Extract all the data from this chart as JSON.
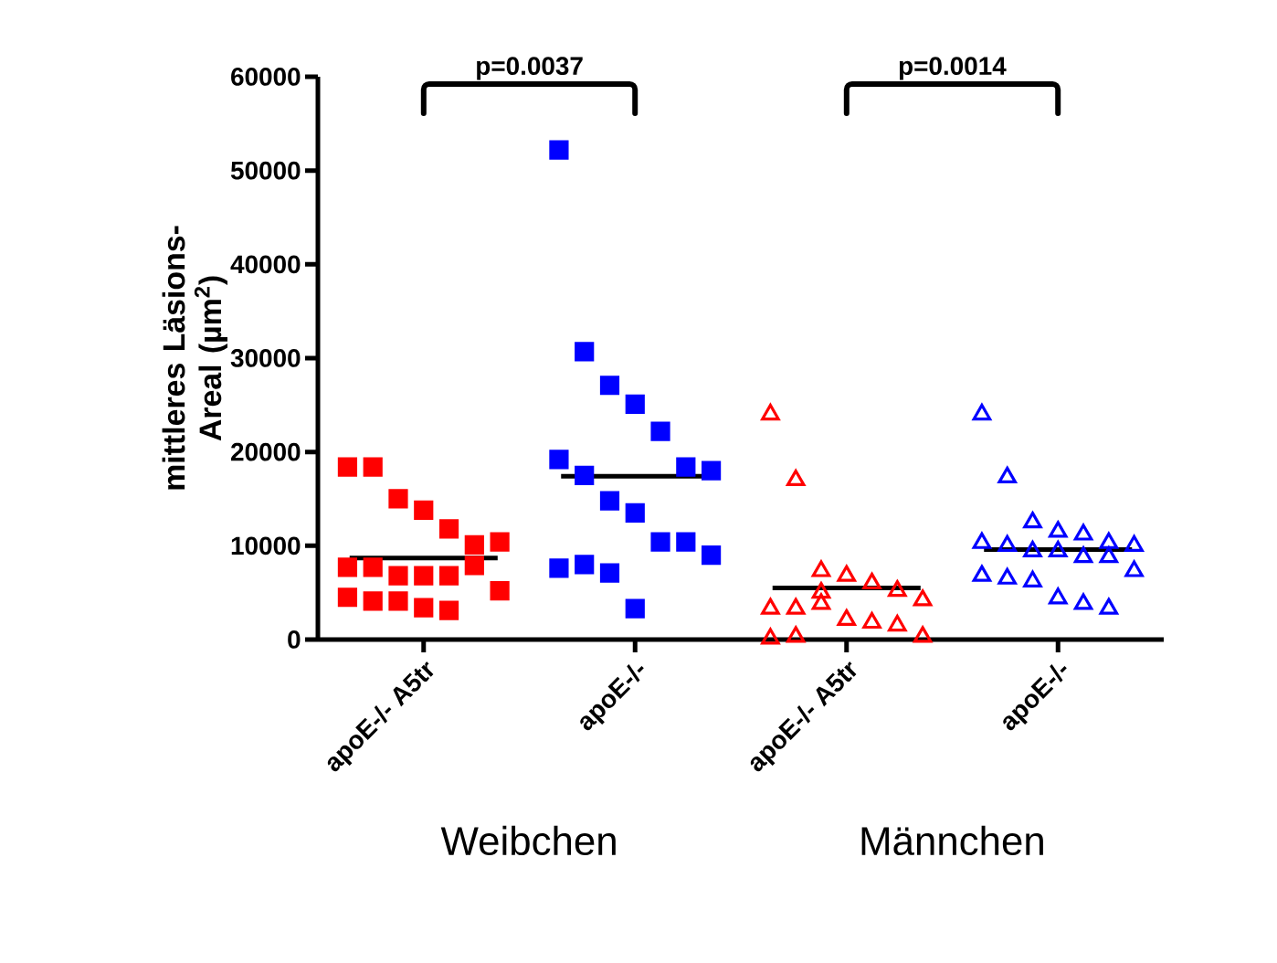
{
  "chart_data": {
    "type": "scatter",
    "ylabel": "mittleres Läsions-Areal (µm$^{2}$)",
    "categories": [
      "apoE-/- A5tr",
      "apoE-/-",
      "apoE-/- A5tr",
      "apoE-/-"
    ],
    "series": [
      {
        "marker": "square",
        "colors": [
          "#ff0000",
          "#0000ff",
          "#ff0000",
          "#0000ff"
        ],
        "values": [
          18400,
          52200,
          null,
          null
        ]
      },
      {
        "marker": "square",
        "colors": [
          "#ff0000",
          "#0000ff",
          "#ff0000",
          "#0000ff"
        ],
        "values": [
          18400,
          30700,
          null,
          null
        ]
      },
      {
        "marker": "square",
        "colors": [
          "#ff0000",
          "#0000ff",
          "#ff0000",
          "#0000ff"
        ],
        "values": [
          15000,
          27100,
          null,
          null
        ]
      },
      {
        "marker": "square",
        "colors": [
          "#ff0000",
          "#0000ff",
          "#ff0000",
          "#0000ff"
        ],
        "values": [
          13800,
          25100,
          null,
          null
        ]
      },
      {
        "marker": "square",
        "colors": [
          "#ff0000",
          "#0000ff",
          "#ff0000",
          "#0000ff"
        ],
        "values": [
          11800,
          22200,
          null,
          null
        ]
      },
      {
        "marker": "square",
        "colors": [
          "#ff0000",
          "#0000ff",
          "#ff0000",
          "#0000ff"
        ],
        "values": [
          10100,
          18400,
          null,
          null
        ]
      },
      {
        "marker": "square",
        "colors": [
          "#ff0000",
          "#0000ff",
          "#ff0000",
          "#0000ff"
        ],
        "values": [
          10400,
          18000,
          null,
          null
        ]
      },
      {
        "marker": "square",
        "colors": [
          "#ff0000",
          "#0000ff",
          "#ff0000",
          "#0000ff"
        ],
        "values": [
          7700,
          19200,
          null,
          null
        ]
      },
      {
        "marker": "square",
        "colors": [
          "#ff0000",
          "#0000ff",
          "#ff0000",
          "#0000ff"
        ],
        "values": [
          7700,
          17500,
          null,
          null
        ]
      },
      {
        "marker": "square",
        "colors": [
          "#ff0000",
          "#0000ff",
          "#ff0000",
          "#0000ff"
        ],
        "values": [
          6800,
          14800,
          null,
          null
        ]
      },
      {
        "marker": "square",
        "colors": [
          "#ff0000",
          "#0000ff",
          "#ff0000",
          "#0000ff"
        ],
        "values": [
          6800,
          13500,
          null,
          null
        ]
      },
      {
        "marker": "square",
        "colors": [
          "#ff0000",
          "#0000ff",
          "#ff0000",
          "#0000ff"
        ],
        "values": [
          6800,
          10400,
          null,
          null
        ]
      },
      {
        "marker": "square",
        "colors": [
          "#ff0000",
          "#0000ff",
          "#ff0000",
          "#0000ff"
        ],
        "values": [
          7900,
          10400,
          null,
          null
        ]
      },
      {
        "marker": "square",
        "colors": [
          "#ff0000",
          "#0000ff",
          "#ff0000",
          "#0000ff"
        ],
        "values": [
          5200,
          9000,
          null,
          null
        ]
      },
      {
        "marker": "square",
        "colors": [
          "#ff0000",
          "#0000ff",
          "#ff0000",
          "#0000ff"
        ],
        "values": [
          4500,
          7600,
          null,
          null
        ]
      },
      {
        "marker": "square",
        "colors": [
          "#ff0000",
          "#0000ff",
          "#ff0000",
          "#0000ff"
        ],
        "values": [
          4100,
          8000,
          null,
          null
        ]
      },
      {
        "marker": "square",
        "colors": [
          "#ff0000",
          "#0000ff",
          "#ff0000",
          "#0000ff"
        ],
        "values": [
          4100,
          7100,
          null,
          null
        ]
      },
      {
        "marker": "square",
        "colors": [
          "#ff0000",
          "#0000ff",
          "#ff0000",
          "#0000ff"
        ],
        "values": [
          3400,
          3300,
          null,
          null
        ]
      },
      {
        "marker": "square",
        "colors": [
          "#ff0000",
          "#0000ff",
          "#ff0000",
          "#0000ff"
        ],
        "values": [
          3100,
          null,
          null,
          null
        ]
      },
      {
        "marker": "triangle",
        "colors": [
          "#ff0000",
          "#0000ff",
          "#ff0000",
          "#0000ff"
        ],
        "values": [
          null,
          null,
          24000,
          24000
        ]
      },
      {
        "marker": "triangle",
        "colors": [
          "#ff0000",
          "#0000ff",
          "#ff0000",
          "#0000ff"
        ],
        "values": [
          null,
          null,
          17000,
          17300
        ]
      },
      {
        "marker": "triangle",
        "colors": [
          "#ff0000",
          "#0000ff",
          "#ff0000",
          "#0000ff"
        ],
        "values": [
          null,
          null,
          7300,
          12500
        ]
      },
      {
        "marker": "triangle",
        "colors": [
          "#ff0000",
          "#0000ff",
          "#ff0000",
          "#0000ff"
        ],
        "values": [
          null,
          null,
          6800,
          11500
        ]
      },
      {
        "marker": "triangle",
        "colors": [
          "#ff0000",
          "#0000ff",
          "#ff0000",
          "#0000ff"
        ],
        "values": [
          null,
          null,
          6000,
          11200
        ]
      },
      {
        "marker": "triangle",
        "colors": [
          "#ff0000",
          "#0000ff",
          "#ff0000",
          "#0000ff"
        ],
        "values": [
          null,
          null,
          5200,
          10300
        ]
      },
      {
        "marker": "triangle",
        "colors": [
          "#ff0000",
          "#0000ff",
          "#ff0000",
          "#0000ff"
        ],
        "values": [
          null,
          null,
          4200,
          10000
        ]
      },
      {
        "marker": "triangle",
        "colors": [
          "#ff0000",
          "#0000ff",
          "#ff0000",
          "#0000ff"
        ],
        "values": [
          null,
          null,
          3300,
          10300
        ]
      },
      {
        "marker": "triangle",
        "colors": [
          "#ff0000",
          "#0000ff",
          "#ff0000",
          "#0000ff"
        ],
        "values": [
          null,
          null,
          3300,
          10000
        ]
      },
      {
        "marker": "triangle",
        "colors": [
          "#ff0000",
          "#0000ff",
          "#ff0000",
          "#0000ff"
        ],
        "values": [
          null,
          null,
          3800,
          9400
        ]
      },
      {
        "marker": "triangle",
        "colors": [
          "#ff0000",
          "#0000ff",
          "#ff0000",
          "#0000ff"
        ],
        "values": [
          null,
          null,
          2100,
          9400
        ]
      },
      {
        "marker": "triangle",
        "colors": [
          "#ff0000",
          "#0000ff",
          "#ff0000",
          "#0000ff"
        ],
        "values": [
          null,
          null,
          1800,
          8800
        ]
      },
      {
        "marker": "triangle",
        "colors": [
          "#ff0000",
          "#0000ff",
          "#ff0000",
          "#0000ff"
        ],
        "values": [
          null,
          null,
          1500,
          8800
        ]
      },
      {
        "marker": "triangle",
        "colors": [
          "#ff0000",
          "#0000ff",
          "#ff0000",
          "#0000ff"
        ],
        "values": [
          null,
          null,
          300,
          7300
        ]
      },
      {
        "marker": "triangle",
        "colors": [
          "#ff0000",
          "#0000ff",
          "#ff0000",
          "#0000ff"
        ],
        "values": [
          null,
          null,
          100,
          6800
        ]
      },
      {
        "marker": "triangle",
        "colors": [
          "#ff0000",
          "#0000ff",
          "#ff0000",
          "#0000ff"
        ],
        "values": [
          null,
          null,
          300,
          6500
        ]
      },
      {
        "marker": "triangle",
        "colors": [
          "#ff0000",
          "#0000ff",
          "#ff0000",
          "#0000ff"
        ],
        "values": [
          null,
          null,
          5000,
          6200
        ]
      },
      {
        "marker": "triangle",
        "colors": [
          "#ff0000",
          "#0000ff",
          "#ff0000",
          "#0000ff"
        ],
        "values": [
          null,
          null,
          null,
          4400
        ]
      },
      {
        "marker": "triangle",
        "colors": [
          "#ff0000",
          "#0000ff",
          "#ff0000",
          "#0000ff"
        ],
        "values": [
          null,
          null,
          null,
          3800
        ]
      },
      {
        "marker": "triangle",
        "colors": [
          "#ff0000",
          "#0000ff",
          "#ff0000",
          "#0000ff"
        ],
        "values": [
          null,
          null,
          null,
          3300
        ]
      }
    ],
    "ref_lines": [
      {
        "axis": "y",
        "value": 8700,
        "color": "#000000"
      },
      {
        "axis": "y",
        "value": 17400,
        "color": "#000000"
      },
      {
        "axis": "y",
        "value": 5500,
        "color": "#000000"
      },
      {
        "axis": "y",
        "value": 9600,
        "color": "#000000"
      }
    ],
    "ylim": [
      0,
      60000
    ],
    "yticks": [
      0,
      10000,
      20000,
      30000,
      40000,
      50000,
      60000
    ],
    "annotations": [
      "p=0.0037",
      "p=0.0014",
      "Weibchen",
      "Männchen"
    ]
  }
}
